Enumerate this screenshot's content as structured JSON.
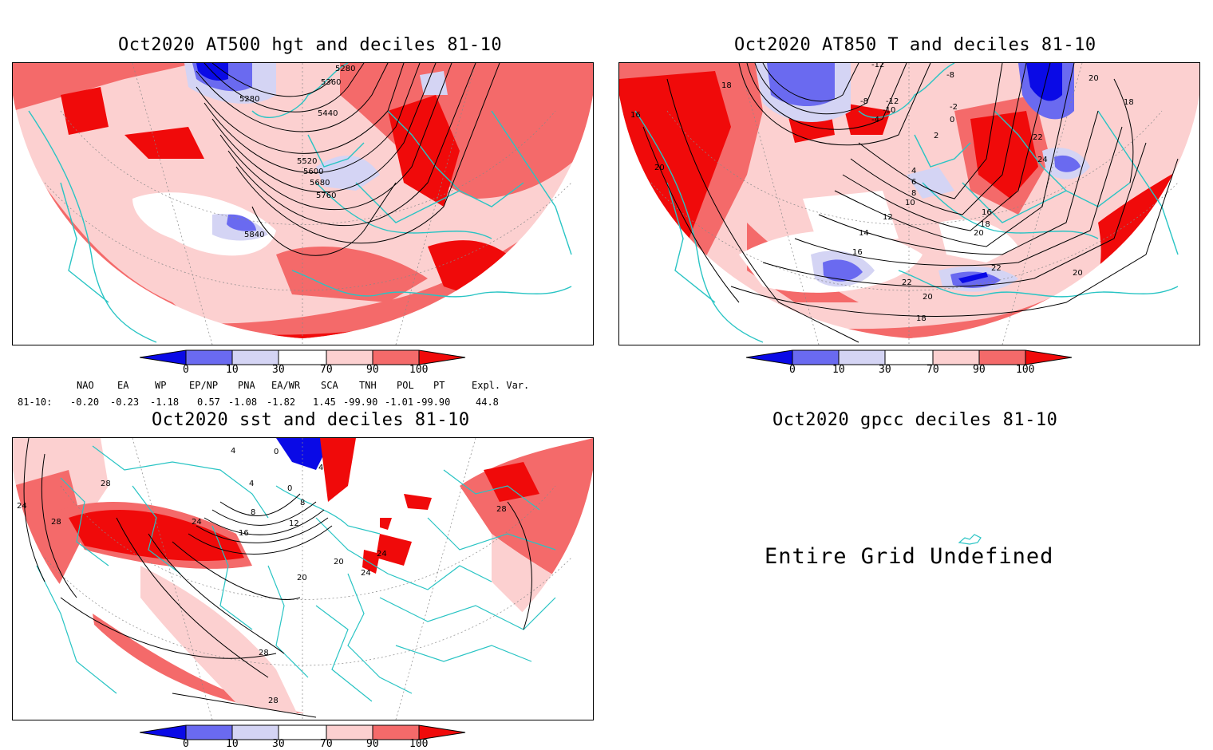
{
  "colors": {
    "coast": "#29c4c4",
    "deep_blue": "#0a0ae6",
    "mid_blue": "#6a6af0",
    "light_blue": "#d4d4f4",
    "light_red": "#fcd0d0",
    "mid_red": "#f46a6a",
    "deep_red": "#f00a0a",
    "contour": "#000000"
  },
  "panels": {
    "hgt": {
      "title": "Oct2020 AT500 hgt and deciles 81-10",
      "contour_labels": [
        "5280",
        "5360",
        "5280",
        "5440",
        "5520",
        "5600",
        "5680",
        "5760",
        "5840"
      ]
    },
    "t850": {
      "title": "Oct2020 AT850 T and deciles 81-10",
      "contour_labels": [
        "-12",
        "-8",
        "18",
        "-8",
        "-12",
        "-2",
        "20",
        "18",
        "16",
        "-4",
        "0",
        "-10",
        "2",
        "4",
        "22",
        "24",
        "6",
        "8",
        "10",
        "20",
        "12",
        "16",
        "18",
        "14",
        "20",
        "16",
        "22",
        "22",
        "20",
        "20",
        "18"
      ]
    },
    "sst": {
      "title": "Oct2020 sst and deciles 81-10",
      "contour_labels": [
        "4",
        "0",
        "4",
        "28",
        "4",
        "0",
        "8",
        "24",
        "8",
        "28",
        "24",
        "12",
        "16",
        "28",
        "20",
        "20",
        "24",
        "24",
        "28",
        "28"
      ]
    },
    "gpcc": {
      "title": "Oct2020 gpcc deciles 81-10",
      "message": "Entire Grid Undefined"
    }
  },
  "colorbar": {
    "ticks": [
      "0",
      "10",
      "30",
      "70",
      "90",
      "100"
    ]
  },
  "indices": {
    "headers": [
      "NAO",
      "EA",
      "WP",
      "EP/NP",
      "PNA",
      "EA/WR",
      "SCA",
      "TNH",
      "POL",
      "PT",
      "Expl. Var."
    ],
    "row_label": "81-10:",
    "values": [
      "-0.20",
      "-0.23",
      "-1.18",
      "0.57",
      "-1.08",
      "-1.82",
      "1.45",
      "-99.90",
      "-1.01",
      "-99.90",
      "44.8"
    ]
  }
}
